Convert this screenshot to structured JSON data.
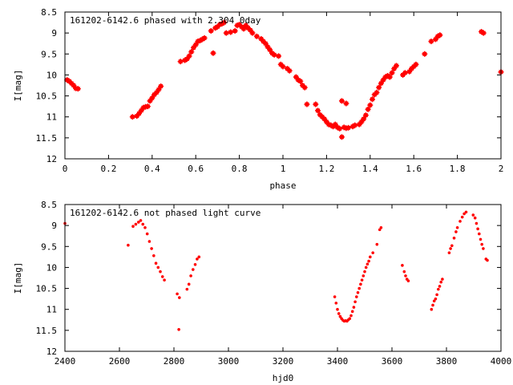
{
  "chart_data": [
    {
      "type": "scatter",
      "title": "161202-6142.6 phased with 2.304 0day",
      "xlabel": "phase",
      "ylabel": "I[mag]",
      "xlim": [
        0,
        2
      ],
      "ylim": [
        12,
        8.5
      ],
      "y_inverted": true,
      "grid": false,
      "x_ticks": [
        "0",
        "0.2",
        "0.4",
        "0.6",
        "0.8",
        "1",
        "1.2",
        "1.4",
        "1.6",
        "1.8",
        "2"
      ],
      "y_ticks": [
        "8.5",
        "9",
        "9.5",
        "10",
        "10.5",
        "11",
        "11.5",
        "12"
      ],
      "marker_color": "#ff0000",
      "points": [
        [
          0.01,
          10.12
        ],
        [
          0.02,
          10.15
        ],
        [
          0.03,
          10.2
        ],
        [
          0.04,
          10.25
        ],
        [
          0.05,
          10.32
        ],
        [
          0.06,
          10.33
        ],
        [
          0.31,
          11.0
        ],
        [
          0.33,
          10.98
        ],
        [
          0.34,
          10.92
        ],
        [
          0.35,
          10.85
        ],
        [
          0.36,
          10.78
        ],
        [
          0.37,
          10.76
        ],
        [
          0.38,
          10.75
        ],
        [
          0.39,
          10.62
        ],
        [
          0.4,
          10.55
        ],
        [
          0.41,
          10.47
        ],
        [
          0.42,
          10.42
        ],
        [
          0.43,
          10.35
        ],
        [
          0.44,
          10.27
        ],
        [
          0.53,
          9.68
        ],
        [
          0.55,
          9.65
        ],
        [
          0.56,
          9.62
        ],
        [
          0.57,
          9.55
        ],
        [
          0.58,
          9.45
        ],
        [
          0.59,
          9.35
        ],
        [
          0.6,
          9.28
        ],
        [
          0.61,
          9.2
        ],
        [
          0.62,
          9.18
        ],
        [
          0.63,
          9.15
        ],
        [
          0.64,
          9.12
        ],
        [
          0.67,
          8.95
        ],
        [
          0.68,
          9.48
        ],
        [
          0.69,
          8.88
        ],
        [
          0.7,
          8.85
        ],
        [
          0.71,
          8.8
        ],
        [
          0.72,
          8.78
        ],
        [
          0.73,
          8.75
        ],
        [
          0.74,
          9.0
        ],
        [
          0.76,
          8.98
        ],
        [
          0.78,
          8.95
        ],
        [
          0.79,
          8.82
        ],
        [
          0.8,
          8.8
        ],
        [
          0.81,
          8.85
        ],
        [
          0.82,
          8.9
        ],
        [
          0.83,
          8.82
        ],
        [
          0.84,
          8.88
        ],
        [
          0.85,
          8.93
        ],
        [
          0.86,
          9.0
        ],
        [
          0.88,
          9.08
        ],
        [
          0.9,
          9.14
        ],
        [
          0.91,
          9.2
        ],
        [
          0.92,
          9.25
        ],
        [
          0.93,
          9.33
        ],
        [
          0.94,
          9.4
        ],
        [
          0.95,
          9.48
        ],
        [
          0.96,
          9.52
        ],
        [
          0.98,
          9.55
        ],
        [
          0.99,
          9.75
        ],
        [
          1.0,
          9.8
        ],
        [
          1.02,
          9.85
        ],
        [
          1.03,
          9.9
        ],
        [
          1.06,
          10.05
        ],
        [
          1.07,
          10.12
        ],
        [
          1.08,
          10.15
        ],
        [
          1.09,
          10.25
        ],
        [
          1.1,
          10.3
        ],
        [
          1.11,
          10.7
        ],
        [
          1.15,
          10.7
        ],
        [
          1.16,
          10.85
        ],
        [
          1.17,
          10.95
        ],
        [
          1.18,
          11.0
        ],
        [
          1.19,
          11.05
        ],
        [
          1.2,
          11.12
        ],
        [
          1.21,
          11.18
        ],
        [
          1.22,
          11.2
        ],
        [
          1.23,
          11.23
        ],
        [
          1.24,
          11.18
        ],
        [
          1.25,
          11.25
        ],
        [
          1.26,
          11.28
        ],
        [
          1.27,
          11.48
        ],
        [
          1.28,
          11.25
        ],
        [
          1.29,
          11.27
        ],
        [
          1.3,
          11.26
        ],
        [
          1.27,
          10.62
        ],
        [
          1.29,
          10.68
        ],
        [
          1.32,
          11.23
        ],
        [
          1.33,
          11.2
        ],
        [
          1.35,
          11.18
        ],
        [
          1.36,
          11.12
        ],
        [
          1.37,
          11.05
        ],
        [
          1.38,
          10.96
        ],
        [
          1.39,
          10.82
        ],
        [
          1.4,
          10.72
        ],
        [
          1.41,
          10.58
        ],
        [
          1.42,
          10.47
        ],
        [
          1.43,
          10.42
        ],
        [
          1.44,
          10.3
        ],
        [
          1.45,
          10.2
        ],
        [
          1.46,
          10.12
        ],
        [
          1.47,
          10.05
        ],
        [
          1.48,
          10.02
        ],
        [
          1.49,
          10.05
        ],
        [
          1.5,
          9.95
        ],
        [
          1.51,
          9.85
        ],
        [
          1.52,
          9.78
        ],
        [
          1.55,
          10.0
        ],
        [
          1.56,
          9.95
        ],
        [
          1.58,
          9.92
        ],
        [
          1.59,
          9.85
        ],
        [
          1.6,
          9.8
        ],
        [
          1.61,
          9.75
        ],
        [
          1.65,
          9.5
        ],
        [
          1.68,
          9.2
        ],
        [
          1.7,
          9.15
        ],
        [
          1.71,
          9.08
        ],
        [
          1.72,
          9.05
        ],
        [
          1.91,
          8.97
        ],
        [
          1.92,
          9.0
        ],
        [
          2.0,
          9.93
        ]
      ]
    },
    {
      "type": "scatter",
      "title": "161202-6142.6 not phased light curve",
      "xlabel": "hjd0",
      "ylabel": "I[mag]",
      "xlim": [
        2400,
        4000
      ],
      "ylim": [
        12,
        8.5
      ],
      "y_inverted": true,
      "grid": false,
      "x_ticks": [
        "2400",
        "2600",
        "2800",
        "3000",
        "3200",
        "3400",
        "3600",
        "3800",
        "4000"
      ],
      "y_ticks": [
        "8.5",
        "9",
        "9.5",
        "10",
        "10.5",
        "11",
        "11.5",
        "12"
      ],
      "marker_color": "#ff0000",
      "points": [
        [
          2400,
          8.95
        ],
        [
          2632,
          9.47
        ],
        [
          2650,
          9.02
        ],
        [
          2660,
          8.97
        ],
        [
          2670,
          8.92
        ],
        [
          2678,
          8.88
        ],
        [
          2686,
          8.97
        ],
        [
          2694,
          9.05
        ],
        [
          2702,
          9.2
        ],
        [
          2710,
          9.38
        ],
        [
          2718,
          9.55
        ],
        [
          2726,
          9.72
        ],
        [
          2734,
          9.9
        ],
        [
          2742,
          10.0
        ],
        [
          2750,
          10.1
        ],
        [
          2758,
          10.22
        ],
        [
          2765,
          10.3
        ],
        [
          2812,
          10.63
        ],
        [
          2820,
          10.72
        ],
        [
          2818,
          11.48
        ],
        [
          2848,
          10.52
        ],
        [
          2855,
          10.4
        ],
        [
          2862,
          10.2
        ],
        [
          2870,
          10.05
        ],
        [
          2878,
          9.93
        ],
        [
          2885,
          9.8
        ],
        [
          2892,
          9.75
        ],
        [
          3390,
          10.7
        ],
        [
          3395,
          10.85
        ],
        [
          3400,
          11.0
        ],
        [
          3405,
          11.1
        ],
        [
          3410,
          11.17
        ],
        [
          3415,
          11.22
        ],
        [
          3420,
          11.26
        ],
        [
          3425,
          11.28
        ],
        [
          3430,
          11.27
        ],
        [
          3435,
          11.28
        ],
        [
          3440,
          11.25
        ],
        [
          3445,
          11.22
        ],
        [
          3450,
          11.15
        ],
        [
          3455,
          11.05
        ],
        [
          3460,
          10.95
        ],
        [
          3465,
          10.82
        ],
        [
          3470,
          10.7
        ],
        [
          3475,
          10.6
        ],
        [
          3480,
          10.5
        ],
        [
          3485,
          10.4
        ],
        [
          3490,
          10.3
        ],
        [
          3495,
          10.2
        ],
        [
          3500,
          10.1
        ],
        [
          3505,
          10.0
        ],
        [
          3510,
          9.92
        ],
        [
          3515,
          9.85
        ],
        [
          3520,
          9.75
        ],
        [
          3530,
          9.65
        ],
        [
          3545,
          9.45
        ],
        [
          3555,
          9.1
        ],
        [
          3560,
          9.05
        ],
        [
          3638,
          9.95
        ],
        [
          3645,
          10.1
        ],
        [
          3650,
          10.2
        ],
        [
          3655,
          10.28
        ],
        [
          3660,
          10.32
        ],
        [
          3745,
          11.0
        ],
        [
          3750,
          10.9
        ],
        [
          3755,
          10.8
        ],
        [
          3760,
          10.75
        ],
        [
          3765,
          10.65
        ],
        [
          3770,
          10.52
        ],
        [
          3775,
          10.45
        ],
        [
          3780,
          10.35
        ],
        [
          3785,
          10.28
        ],
        [
          3810,
          9.65
        ],
        [
          3815,
          9.55
        ],
        [
          3820,
          9.48
        ],
        [
          3828,
          9.3
        ],
        [
          3835,
          9.15
        ],
        [
          3840,
          9.05
        ],
        [
          3850,
          8.9
        ],
        [
          3858,
          8.8
        ],
        [
          3865,
          8.72
        ],
        [
          3872,
          8.68
        ],
        [
          3898,
          8.75
        ],
        [
          3905,
          8.82
        ],
        [
          3910,
          8.95
        ],
        [
          3915,
          9.08
        ],
        [
          3920,
          9.2
        ],
        [
          3925,
          9.33
        ],
        [
          3930,
          9.45
        ],
        [
          3935,
          9.55
        ],
        [
          3945,
          9.8
        ],
        [
          3950,
          9.83
        ]
      ]
    }
  ]
}
